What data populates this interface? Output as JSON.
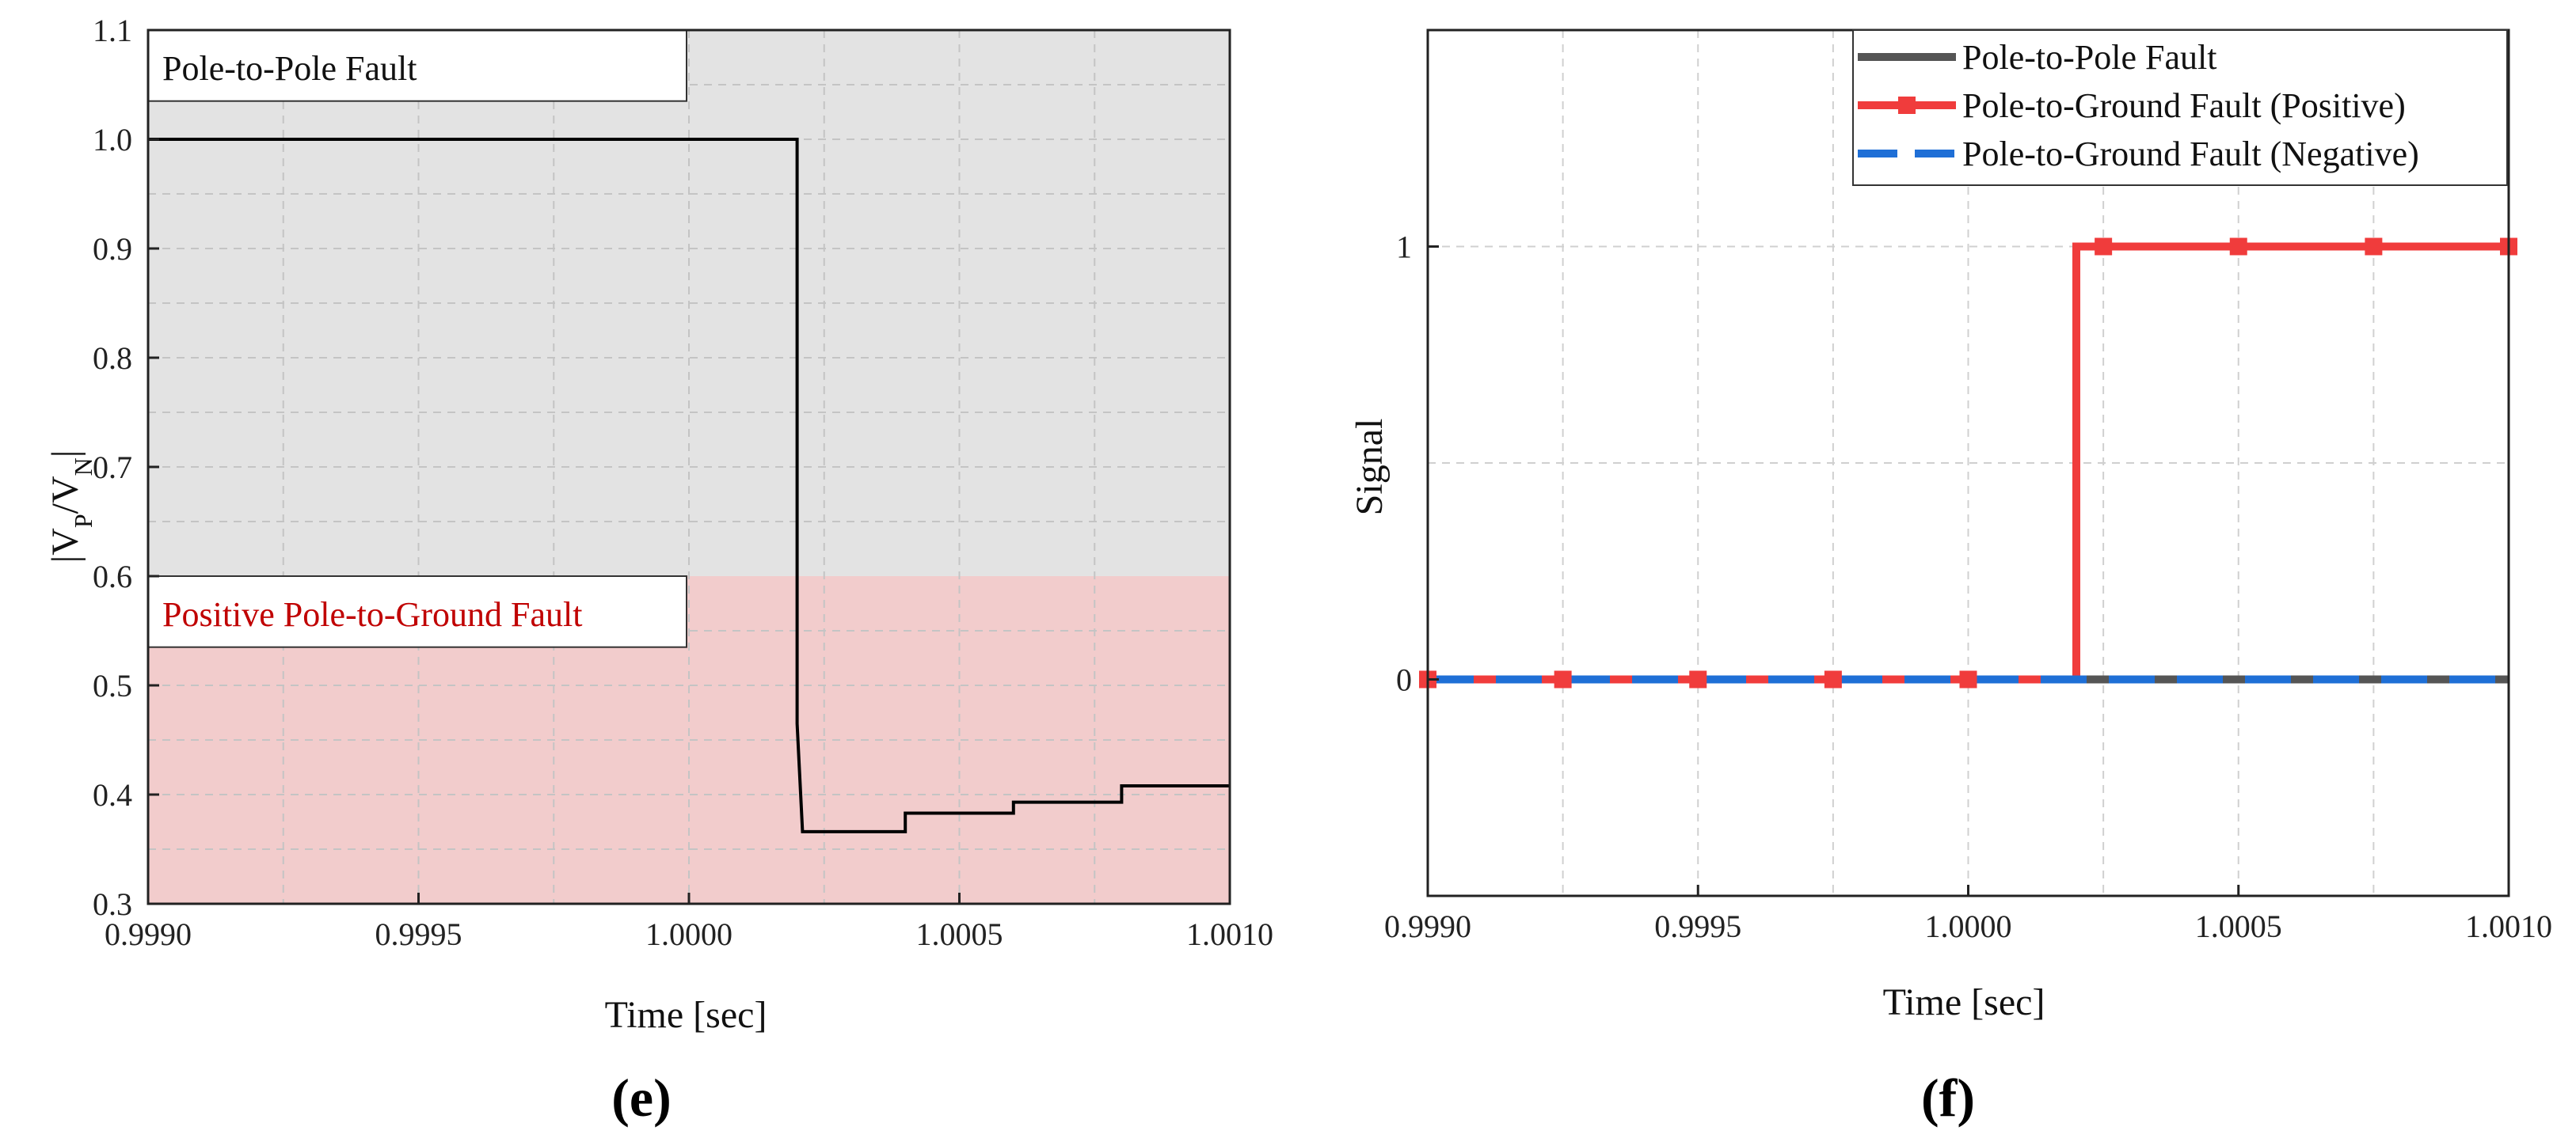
{
  "chart_data": [
    {
      "type": "line",
      "panel_label": "(e)",
      "xlabel": "Time [sec]",
      "ylabel_main": "|V",
      "ylabel_sub_p": "P",
      "ylabel_mid": "/V",
      "ylabel_sub_n": "N",
      "ylabel_end": "|",
      "xlim": [
        0.999,
        1.001
      ],
      "ylim": [
        0.3,
        1.1
      ],
      "grid": true,
      "x_ticks": [
        "0.9990",
        "0.9995",
        "1.0000",
        "1.0005",
        "1.0010"
      ],
      "x_tick_values": [
        0.999,
        0.9995,
        1.0,
        1.0005,
        1.001
      ],
      "y_ticks": [
        "0.3",
        "0.4",
        "0.5",
        "0.6",
        "0.7",
        "0.8",
        "0.9",
        "1.0",
        "1.1"
      ],
      "y_tick_values": [
        0.3,
        0.4,
        0.5,
        0.6,
        0.7,
        0.8,
        0.9,
        1.0,
        1.1
      ],
      "regions": [
        {
          "label": "Pole-to-Pole Fault",
          "y_from": 0.6,
          "y_to": 1.1,
          "color": "#e3e3e3",
          "text_color": "#111111"
        },
        {
          "label": "Positive Pole-to-Ground Fault",
          "y_from": 0.3,
          "y_to": 0.6,
          "color": "#f2cccc",
          "text_color": "#c00000"
        }
      ],
      "series": [
        {
          "color": "#000000",
          "x": [
            0.999,
            1.0002,
            1.0002,
            1.00021,
            1.0004,
            1.0004,
            1.0006,
            1.0006,
            1.0008,
            1.0008,
            1.001
          ],
          "y": [
            1.0,
            1.0,
            0.465,
            0.366,
            0.366,
            0.383,
            0.383,
            0.393,
            0.393,
            0.408,
            0.408
          ]
        }
      ]
    },
    {
      "type": "line",
      "panel_label": "(f)",
      "xlabel": "Time [sec]",
      "ylabel": "Signal",
      "xlim": [
        0.999,
        1.001
      ],
      "ylim": [
        -0.5,
        1.5
      ],
      "grid": true,
      "x_ticks": [
        "0.9990",
        "0.9995",
        "1.0000",
        "1.0005",
        "1.0010"
      ],
      "x_tick_values": [
        0.999,
        0.9995,
        1.0,
        1.0005,
        1.001
      ],
      "y_ticks": [
        "0",
        "1"
      ],
      "y_tick_values": [
        0,
        1
      ],
      "legend_position": "top-right",
      "series": [
        {
          "name": "Pole-to-Pole Fault",
          "color": "#555555",
          "style": "solid",
          "x": [
            0.999,
            1.001
          ],
          "y": [
            0,
            0
          ]
        },
        {
          "name": "Pole-to-Ground Fault (Positive)",
          "color": "#f03c3c",
          "style": "solid",
          "marker": "square",
          "x": [
            0.999,
            1.0002,
            1.0002,
            1.001
          ],
          "y": [
            0,
            0,
            1,
            1
          ],
          "marker_x": [
            0.999,
            0.99925,
            0.9995,
            0.99975,
            1.0,
            1.00025,
            1.0005,
            1.00075,
            1.001
          ],
          "marker_y": [
            0,
            0,
            0,
            0,
            0,
            1,
            1,
            1,
            1
          ]
        },
        {
          "name": "Pole-to-Ground Fault (Negative)",
          "color": "#1f6fd6",
          "style": "dashed",
          "x": [
            0.999,
            1.001
          ],
          "y": [
            0,
            0
          ]
        }
      ]
    }
  ]
}
